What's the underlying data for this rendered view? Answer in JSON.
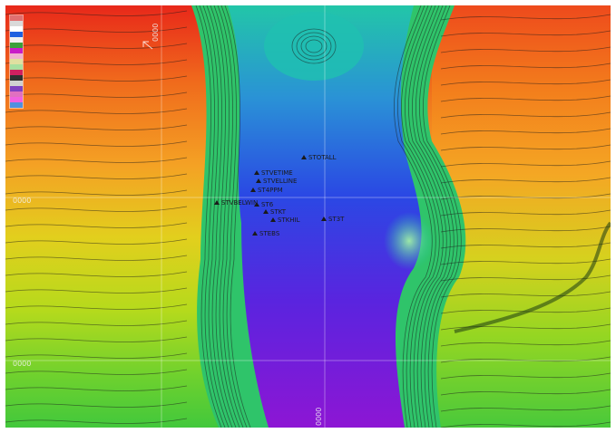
{
  "map": {
    "type": "bathymetric-contour-map",
    "palette": [
      "#ee2218",
      "#f2621a",
      "#f5a223",
      "#e0d21c",
      "#a8dc1f",
      "#55d036",
      "#20c4a0",
      "#2a8fd6",
      "#2a3ee6",
      "#5a21df",
      "#8f15d3"
    ],
    "trench": "N–S",
    "summit-feature": "small seamount",
    "gridlines": true
  },
  "grid_labels": [
    "0000",
    "0000",
    "0000",
    "0000"
  ],
  "site_labels": [
    "STOTALL",
    "STVETIME",
    "STVELLINE",
    "ST4PPM",
    "STVBELWIN",
    "ST6",
    "STKT",
    "STKHIL",
    "ST3T",
    "STEBS"
  ],
  "legend": {
    "swatch_colors": [
      "#e07070",
      "#d9d9d9",
      "#ffffff",
      "#2060e0",
      "#f0f0f0",
      "#3aa03a",
      "#c81cc8",
      "#f0b0d0",
      "#e0e0a0",
      "#a8e0a0",
      "#d02060",
      "#303030",
      "#d0d0d0",
      "#8040c0",
      "#e070c0",
      "#f060e0",
      "#5090e0"
    ]
  }
}
